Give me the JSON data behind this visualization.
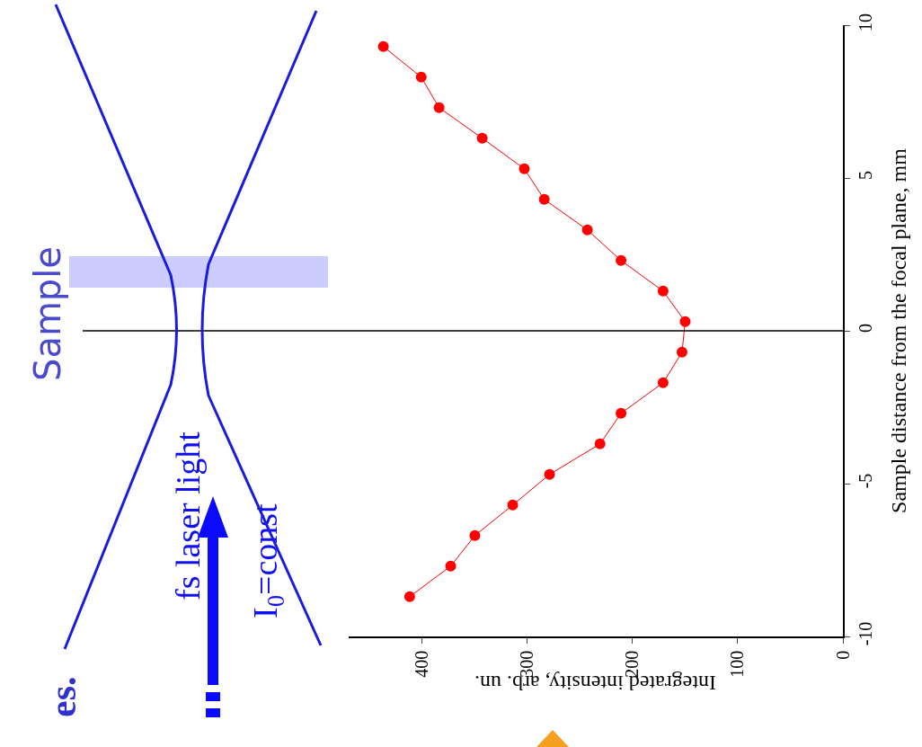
{
  "chart_data": {
    "type": "line",
    "xlabel": "Integrated intensity, arb. un.",
    "ylabel": "Sample distance from the focal plane, mm",
    "x": [
      412,
      373,
      350,
      314,
      279,
      231,
      211,
      171,
      153,
      150,
      171,
      211,
      243,
      284,
      303,
      343,
      384,
      401,
      437
    ],
    "values": [
      -8.7,
      -7.7,
      -6.7,
      -5.7,
      -4.7,
      -3.7,
      -2.7,
      -1.7,
      -0.7,
      0.3,
      1.3,
      2.3,
      3.3,
      4.3,
      5.3,
      6.3,
      7.3,
      8.3,
      9.3
    ],
    "color": "#ff0000",
    "marker": "circle",
    "line_style": "solid",
    "xlim": [
      470,
      0
    ],
    "xticks": [
      400,
      300,
      200,
      100,
      0
    ],
    "ylim": [
      -10,
      10
    ],
    "yticks": [
      -10,
      -5,
      0,
      5,
      10
    ],
    "grid": false,
    "ref_lines": [
      {
        "axis": "y",
        "value": 0,
        "color": "#000000"
      }
    ],
    "annotations": [
      "Sample",
      "fs laser light",
      "I$_{0}$=const",
      "es."
    ]
  }
}
